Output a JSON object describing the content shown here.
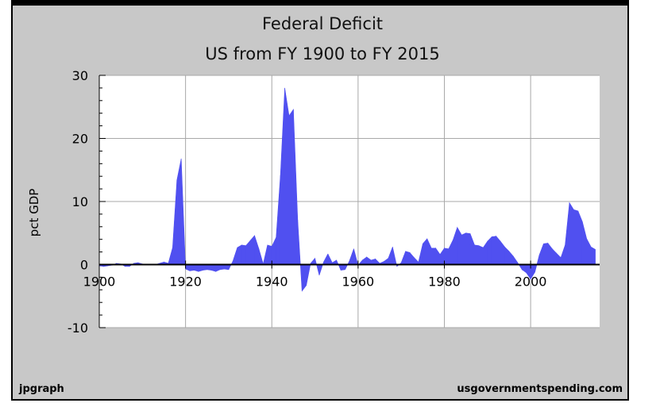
{
  "chart_data": {
    "type": "area",
    "title": "Federal Deficit",
    "subtitle": "US from FY 1900 to FY 2015",
    "xlabel": "",
    "ylabel": "pct GDP",
    "xlim": [
      1900,
      2016
    ],
    "ylim": [
      -10,
      30
    ],
    "x_ticks": [
      1900,
      1920,
      1940,
      1960,
      1980,
      2000
    ],
    "y_ticks": [
      -10,
      0,
      10,
      20,
      30
    ],
    "grid": true,
    "fill_color": "#5050f0",
    "series": [
      {
        "x": [
          1900,
          1901,
          1902,
          1903,
          1904,
          1905,
          1906,
          1907,
          1908,
          1909,
          1910,
          1911,
          1912,
          1913,
          1914,
          1915,
          1916,
          1917,
          1918,
          1919,
          1920,
          1921,
          1922,
          1923,
          1924,
          1925,
          1926,
          1927,
          1928,
          1929,
          1930,
          1931,
          1932,
          1933,
          1934,
          1935,
          1936,
          1937,
          1938,
          1939,
          1940,
          1941,
          1942,
          1943,
          1944,
          1945,
          1946,
          1947,
          1948,
          1949,
          1950,
          1951,
          1952,
          1953,
          1954,
          1955,
          1956,
          1957,
          1958,
          1959,
          1960,
          1961,
          1962,
          1963,
          1964,
          1965,
          1966,
          1967,
          1968,
          1969,
          1970,
          1971,
          1972,
          1973,
          1974,
          1975,
          1976,
          1977,
          1978,
          1979,
          1980,
          1981,
          1982,
          1983,
          1984,
          1985,
          1986,
          1987,
          1988,
          1989,
          1990,
          1991,
          1992,
          1993,
          1994,
          1995,
          1996,
          1997,
          1998,
          1999,
          2000,
          2001,
          2002,
          2003,
          2004,
          2005,
          2006,
          2007,
          2008,
          2009,
          2010,
          2011,
          2012,
          2013,
          2014,
          2015
        ],
        "values": [
          -0.2,
          -0.3,
          -0.2,
          -0.1,
          0.2,
          0.1,
          -0.3,
          -0.3,
          0.2,
          0.3,
          0.1,
          0.0,
          0.0,
          0.0,
          0.2,
          0.4,
          0.2,
          2.7,
          13.4,
          16.8,
          -0.7,
          -1.0,
          -0.9,
          -1.1,
          -0.9,
          -0.8,
          -0.9,
          -1.1,
          -0.8,
          -0.7,
          -0.8,
          0.6,
          2.7,
          3.1,
          3.0,
          3.8,
          4.6,
          2.5,
          0.1,
          3.1,
          2.9,
          4.3,
          14.2,
          28.0,
          23.6,
          24.6,
          7.1,
          -4.2,
          -3.3,
          0.2,
          1.0,
          -1.7,
          0.4,
          1.7,
          0.3,
          0.7,
          -0.9,
          -0.8,
          0.6,
          2.5,
          -0.1,
          0.7,
          1.2,
          0.7,
          0.9,
          0.2,
          0.5,
          1.0,
          2.8,
          -0.3,
          0.3,
          2.1,
          1.9,
          1.1,
          0.4,
          3.3,
          4.1,
          2.6,
          2.6,
          1.6,
          2.6,
          2.5,
          3.9,
          5.9,
          4.7,
          5.0,
          4.9,
          3.1,
          3.0,
          2.7,
          3.7,
          4.4,
          4.5,
          3.7,
          2.8,
          2.1,
          1.3,
          0.3,
          -0.8,
          -1.3,
          -2.3,
          -1.2,
          1.5,
          3.3,
          3.4,
          2.5,
          1.8,
          1.1,
          3.1,
          9.8,
          8.7,
          8.5,
          6.8,
          4.1,
          2.8,
          2.4
        ]
      }
    ]
  },
  "credits": {
    "left": "jpgraph",
    "right": "usgovernmentspending.com"
  }
}
